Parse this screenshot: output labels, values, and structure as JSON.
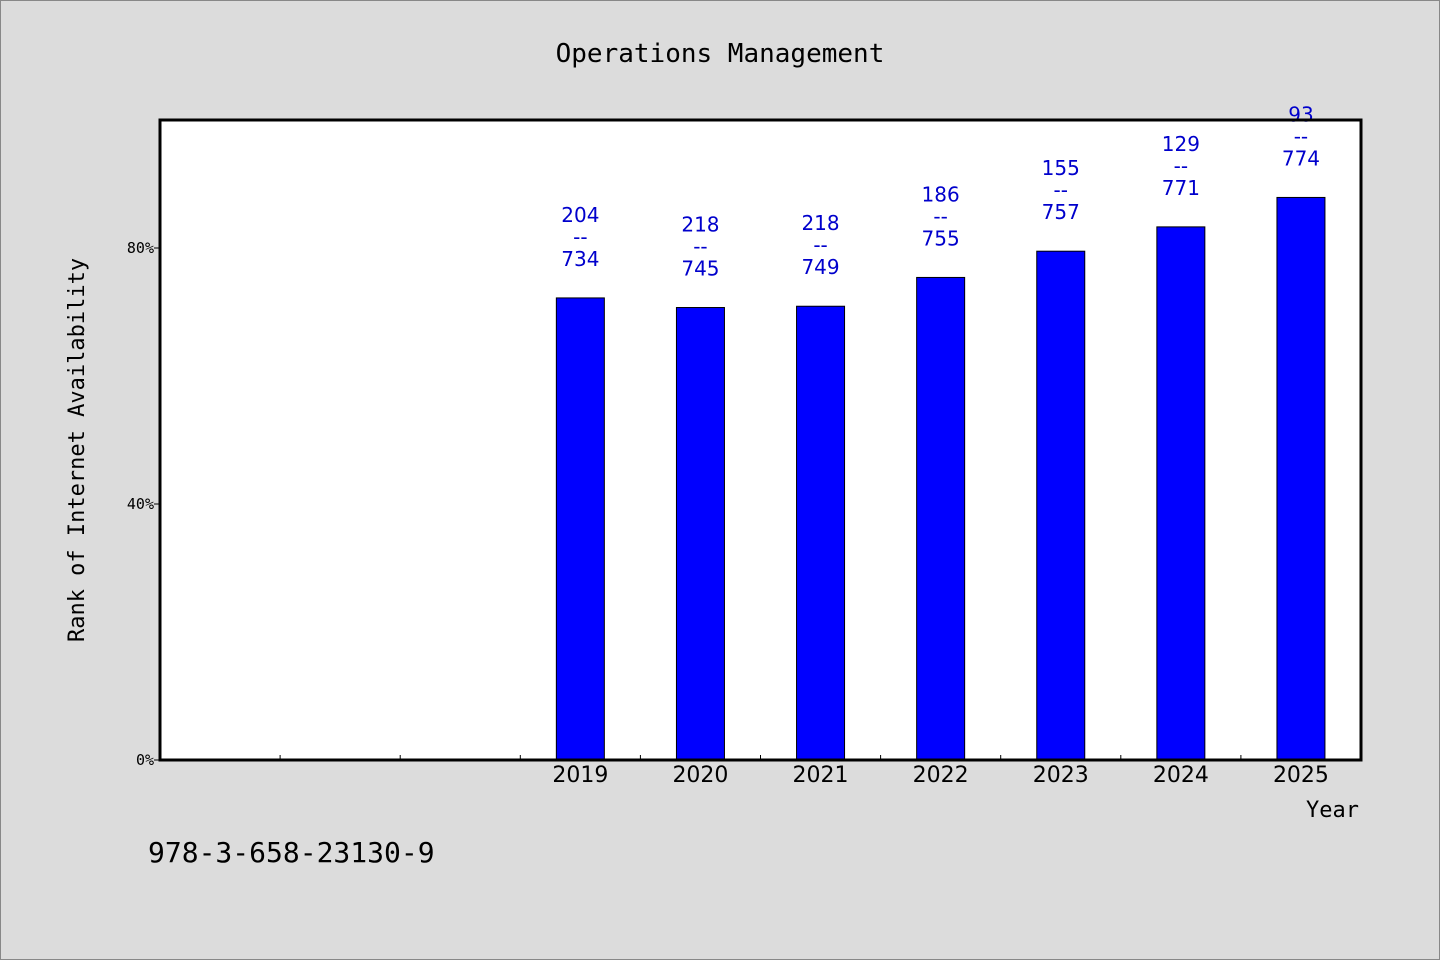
{
  "chart_data": {
    "type": "bar",
    "title": "Operations Management",
    "xlabel": "Year",
    "ylabel": "Rank of Internet Availability",
    "ylim": [
      0,
      100
    ],
    "yticks": [
      {
        "value": 0,
        "label": "0%"
      },
      {
        "value": 40,
        "label": "40%"
      },
      {
        "value": 80,
        "label": "80%"
      }
    ],
    "x_slots": 10,
    "categories": [
      "2019",
      "2020",
      "2021",
      "2022",
      "2023",
      "2024",
      "2025"
    ],
    "first_category_slot": 3,
    "values": [
      72.2,
      70.7,
      70.9,
      75.4,
      79.5,
      83.3,
      87.9
    ],
    "data_labels": [
      [
        "204",
        "--",
        "734"
      ],
      [
        "218",
        "--",
        "745"
      ],
      [
        "218",
        "--",
        "749"
      ],
      [
        "186",
        "--",
        "755"
      ],
      [
        "155",
        "--",
        "757"
      ],
      [
        "129",
        "--",
        "771"
      ],
      [
        "93",
        "--",
        "774"
      ]
    ],
    "bar_color": "#0000ff",
    "label_color": "#0000cc",
    "grid": false
  },
  "footer_code": "978-3-658-23130-9"
}
